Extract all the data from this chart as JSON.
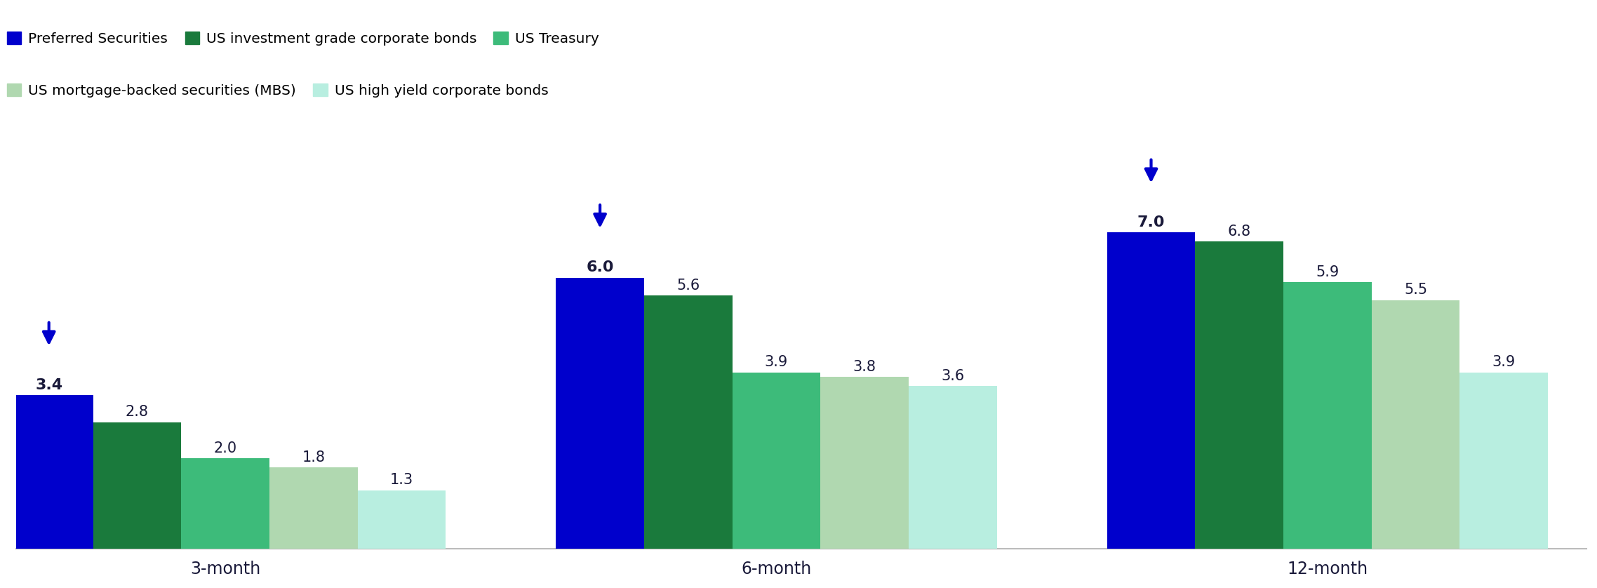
{
  "categories": [
    "3-month",
    "6-month",
    "12-month"
  ],
  "series": [
    {
      "label": "Preferred Securities",
      "color": "#0000cc",
      "values": [
        3.4,
        6.0,
        7.0
      ]
    },
    {
      "label": "US investment grade corporate bonds",
      "color": "#1a7a3c",
      "values": [
        2.8,
        5.6,
        6.8
      ]
    },
    {
      "label": "US Treasury",
      "color": "#3dbb7a",
      "values": [
        2.0,
        3.9,
        5.9
      ]
    },
    {
      "label": "US mortgage-backed securities (MBS)",
      "color": "#b0d8b0",
      "values": [
        1.8,
        3.8,
        5.5
      ]
    },
    {
      "label": "US high yield corporate bonds",
      "color": "#b8eee0",
      "values": [
        1.3,
        3.6,
        3.9
      ]
    }
  ],
  "bar_width": 0.16,
  "ylim": [
    0,
    9.5
  ],
  "arrow_color": "#0000cc",
  "background_color": "#ffffff",
  "legend_fontsize": 14.5,
  "value_fontsize": 15,
  "tick_fontsize": 17,
  "bold_value_fontsize": 16,
  "group_centers": [
    0.38,
    1.38,
    2.38
  ],
  "xlim": [
    0.0,
    2.85
  ]
}
